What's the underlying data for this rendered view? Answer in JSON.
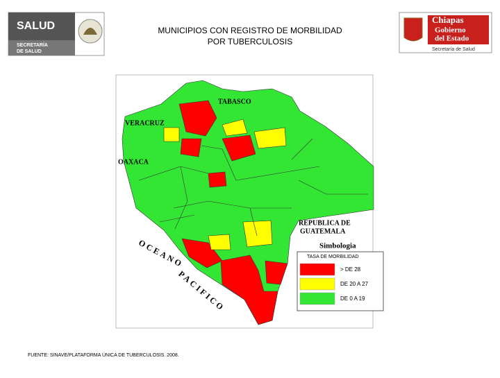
{
  "header": {
    "left_logo": {
      "name": "SALUD",
      "line1": "SECRETARÍA",
      "line2": "DE SALUD"
    },
    "title": [
      "MUNICIPIOS CON REGISTRO DE MORBILIDAD",
      "POR TUBERCULOSIS"
    ],
    "right_logo": {
      "name": "Chiapas",
      "line1": "Gobierno",
      "line2": "del Estado",
      "subtitle": "Secretaría de Salud"
    }
  },
  "map": {
    "labels": {
      "tabasco": "TABASCO",
      "veracruz": "VERACRUZ",
      "oaxaca": "OAXACA",
      "guatemala1": "REPUBLICA DE",
      "guatemala2": "GUATEMALA",
      "oceano": "OCEANO",
      "pacifico": "PACIFICO"
    }
  },
  "legend": {
    "title": "Simbologia",
    "subtitle": "TASA DE MORBILIDAD",
    "items": [
      {
        "label": "> DE 28",
        "color": "#ff0000"
      },
      {
        "label": "DE 20 A 27",
        "color": "#ffff00"
      },
      {
        "label": "DE 0 A 19",
        "color": "#33e633"
      }
    ]
  },
  "source": "FUENTE: SINAVE/PLATAFORMA ÚNICA DE TUBERCULOSIS. 2008."
}
